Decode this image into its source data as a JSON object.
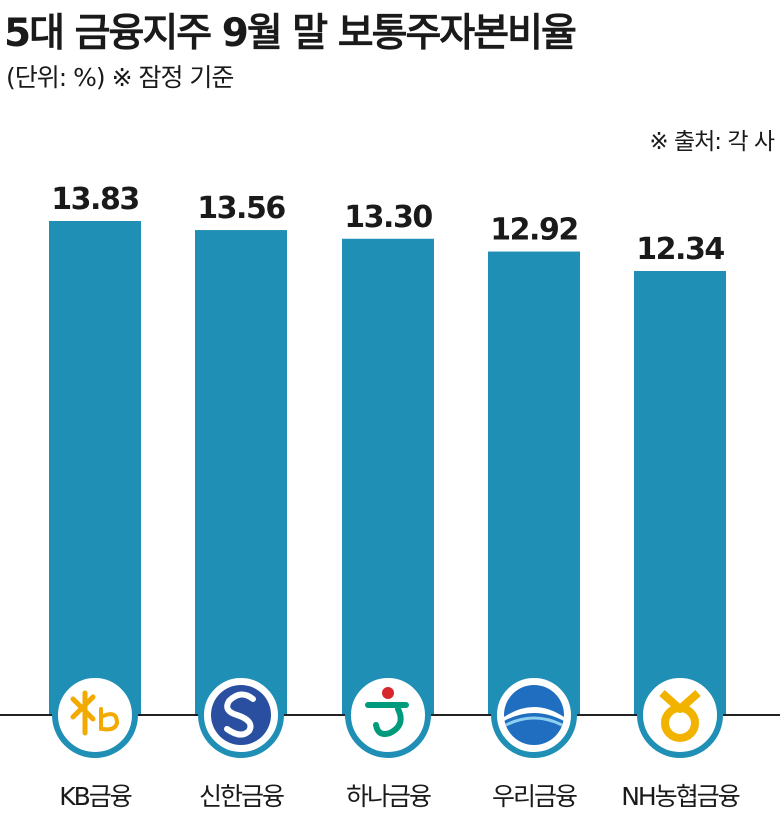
{
  "title": "5대 금융지주 9월 말 보통주자본비율",
  "subtitle": "(단위: %) ※ 잠정 기준",
  "source": "※ 출처: 각 사",
  "colors": {
    "bar": "#1f8fb5",
    "baseline": "#222222",
    "logo_ring": "#1f8fb5"
  },
  "chart_data": {
    "type": "bar",
    "title": "5대 금융지주 9월 말 보통주자본비율",
    "categories": [
      "KB금융",
      "신한금융",
      "하나금융",
      "우리금융",
      "NH농협금융"
    ],
    "values": [
      13.83,
      13.56,
      13.3,
      12.92,
      12.34
    ],
    "value_labels": [
      "13.83",
      "13.56",
      "13.30",
      "12.92",
      "12.34"
    ],
    "logos": [
      "kb-logo",
      "shinhan-logo",
      "hana-logo",
      "woori-logo",
      "nh-logo"
    ],
    "grid": false,
    "legend": "none"
  }
}
